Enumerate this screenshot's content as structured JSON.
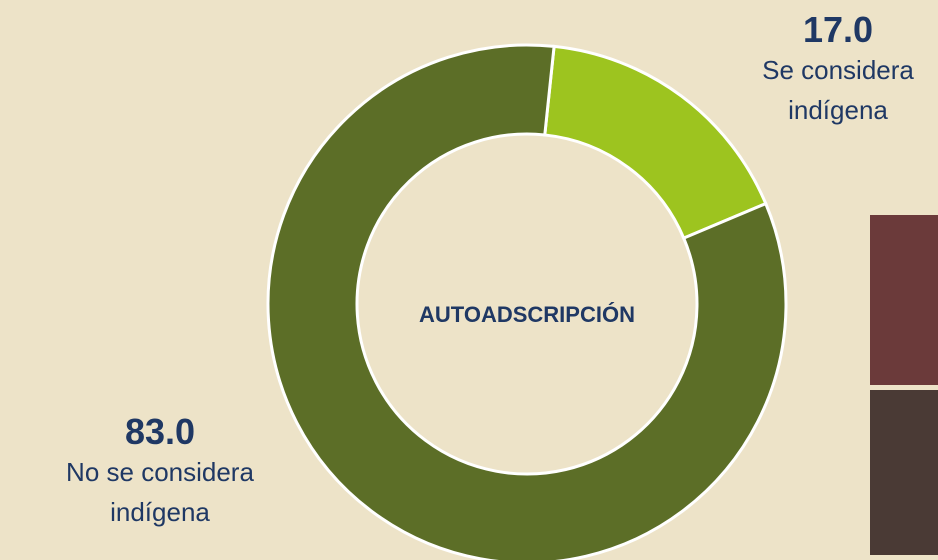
{
  "chart_data": {
    "type": "donut",
    "title": "AUTOADSCRIPCIÓN",
    "categories": [
      "Se considera indígena",
      "No se considera indígena"
    ],
    "values": [
      17.0,
      83.0
    ],
    "value_labels": [
      "17.0",
      "83.0"
    ],
    "colors": [
      "#9dc41f",
      "#5c6e27"
    ]
  }
}
